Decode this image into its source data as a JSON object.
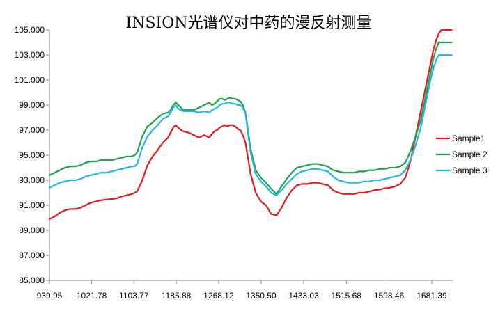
{
  "chart_data": {
    "type": "line",
    "title": "INSION光谱仪对中药的漫反射测量",
    "xlabel": "",
    "ylabel": "",
    "x_ticks": [
      "939.95",
      "1021.78",
      "1103.77",
      "1185.88",
      "1268.12",
      "1350.50",
      "1433.03",
      "1515.68",
      "1598.46",
      "1681.39"
    ],
    "y_ticks": [
      "85.000",
      "87.000",
      "89.000",
      "91.000",
      "93.000",
      "95.000",
      "97.000",
      "99.000",
      "101.000",
      "103.000",
      "105.000"
    ],
    "xlim": [
      939.95,
      1722
    ],
    "ylim": [
      85,
      105
    ],
    "grid": false,
    "legend_position": "right",
    "x": [
      940,
      950,
      960,
      970,
      980,
      990,
      1000,
      1010,
      1020,
      1030,
      1040,
      1050,
      1060,
      1070,
      1080,
      1090,
      1100,
      1105,
      1110,
      1120,
      1130,
      1140,
      1150,
      1160,
      1170,
      1175,
      1180,
      1185,
      1190,
      1195,
      1200,
      1210,
      1220,
      1230,
      1240,
      1250,
      1255,
      1260,
      1265,
      1270,
      1275,
      1280,
      1285,
      1290,
      1295,
      1300,
      1305,
      1310,
      1315,
      1320,
      1330,
      1340,
      1350,
      1360,
      1370,
      1380,
      1390,
      1400,
      1410,
      1420,
      1430,
      1440,
      1450,
      1460,
      1470,
      1480,
      1490,
      1500,
      1510,
      1520,
      1530,
      1540,
      1550,
      1560,
      1570,
      1580,
      1590,
      1600,
      1610,
      1620,
      1630,
      1640,
      1650,
      1660,
      1665,
      1670,
      1675,
      1680,
      1685,
      1690,
      1695,
      1700,
      1705,
      1710,
      1715,
      1720
    ],
    "series": [
      {
        "name": "Sample1",
        "color": "#e31a1c",
        "values": [
          89.9,
          90.1,
          90.4,
          90.6,
          90.7,
          90.7,
          90.8,
          91.0,
          91.2,
          91.3,
          91.4,
          91.45,
          91.5,
          91.55,
          91.7,
          91.8,
          91.9,
          92.0,
          92.1,
          93.0,
          94.2,
          94.9,
          95.4,
          96.0,
          96.4,
          96.8,
          97.2,
          97.4,
          97.2,
          97.0,
          96.9,
          96.8,
          96.6,
          96.4,
          96.6,
          96.4,
          96.7,
          96.9,
          97.0,
          97.2,
          97.3,
          97.4,
          97.3,
          97.4,
          97.4,
          97.3,
          97.1,
          97.0,
          96.6,
          96.0,
          93.5,
          92.0,
          91.3,
          91.0,
          90.3,
          90.2,
          90.8,
          91.6,
          92.2,
          92.6,
          92.7,
          92.7,
          92.8,
          92.8,
          92.7,
          92.6,
          92.2,
          92.0,
          91.9,
          91.9,
          91.9,
          92.0,
          92.0,
          92.1,
          92.2,
          92.25,
          92.35,
          92.4,
          92.5,
          92.7,
          93.2,
          94.5,
          96.5,
          98.5,
          99.5,
          100.5,
          101.5,
          102.5,
          103.5,
          104.2,
          104.7,
          105.0,
          105.0,
          105.0,
          105.0,
          105.0
        ]
      },
      {
        "name": "Sample 2",
        "color": "#1aa34a",
        "values": [
          93.4,
          93.6,
          93.8,
          94.0,
          94.1,
          94.1,
          94.2,
          94.4,
          94.5,
          94.5,
          94.6,
          94.6,
          94.6,
          94.7,
          94.8,
          94.9,
          94.9,
          95.0,
          95.2,
          96.5,
          97.3,
          97.6,
          98.0,
          98.3,
          98.4,
          98.6,
          99.0,
          99.2,
          99.0,
          98.8,
          98.6,
          98.6,
          98.6,
          98.8,
          99.0,
          99.2,
          99.0,
          99.1,
          99.3,
          99.5,
          99.5,
          99.4,
          99.5,
          99.6,
          99.5,
          99.5,
          99.4,
          99.3,
          99.0,
          98.4,
          95.5,
          93.8,
          93.2,
          92.8,
          92.3,
          91.9,
          92.5,
          93.1,
          93.6,
          94.0,
          94.1,
          94.2,
          94.3,
          94.3,
          94.2,
          94.1,
          93.8,
          93.7,
          93.6,
          93.6,
          93.6,
          93.7,
          93.7,
          93.8,
          93.8,
          93.9,
          93.9,
          94.0,
          94.0,
          94.1,
          94.4,
          95.3,
          96.5,
          97.8,
          98.8,
          99.8,
          100.8,
          101.8,
          102.8,
          103.5,
          104.0,
          104.0,
          104.0,
          104.0,
          104.0,
          104.0
        ]
      },
      {
        "name": "Sample 3",
        "color": "#23b6e8",
        "values": [
          92.4,
          92.6,
          92.8,
          92.9,
          93.0,
          93.0,
          93.1,
          93.3,
          93.4,
          93.5,
          93.6,
          93.6,
          93.7,
          93.8,
          93.9,
          94.0,
          94.1,
          94.1,
          94.3,
          95.6,
          96.5,
          97.0,
          97.4,
          97.9,
          98.1,
          98.4,
          98.8,
          99.0,
          98.7,
          98.6,
          98.5,
          98.5,
          98.5,
          98.4,
          98.5,
          98.4,
          98.6,
          98.7,
          98.8,
          99.0,
          99.1,
          99.1,
          99.2,
          99.2,
          99.1,
          99.1,
          99.0,
          99.0,
          98.8,
          98.3,
          95.2,
          93.5,
          92.9,
          92.5,
          92.0,
          91.8,
          92.2,
          92.7,
          93.1,
          93.5,
          93.7,
          93.8,
          93.9,
          93.9,
          93.8,
          93.7,
          93.3,
          93.0,
          92.9,
          92.8,
          92.8,
          92.8,
          92.9,
          92.9,
          93.0,
          93.0,
          93.1,
          93.2,
          93.3,
          93.4,
          93.8,
          94.6,
          95.8,
          97.2,
          98.2,
          99.2,
          100.2,
          101.2,
          102.0,
          102.6,
          103.0,
          103.0,
          103.0,
          103.0,
          103.0,
          103.0
        ]
      }
    ]
  }
}
